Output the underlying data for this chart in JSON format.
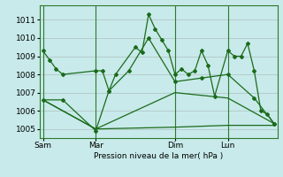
{
  "bg_color": "#c8eaea",
  "grid_color": "#aabbbb",
  "line_color": "#1a6b1a",
  "xlabel": "Pression niveau de la mer( hPa )",
  "ylim": [
    1004.5,
    1011.8
  ],
  "yticks": [
    1005,
    1006,
    1007,
    1008,
    1009,
    1010,
    1011
  ],
  "xtick_labels": [
    "Sam",
    "Mar",
    "Dim",
    "Lun"
  ],
  "xtick_positions": [
    0,
    8,
    20,
    28
  ],
  "series1_x": [
    0,
    1,
    2,
    3,
    8,
    9,
    10,
    11,
    14,
    15,
    16,
    17,
    18,
    19,
    20,
    21,
    22,
    23,
    24,
    25,
    26,
    28,
    29,
    30,
    31,
    32,
    33,
    34,
    35
  ],
  "series1_y": [
    1009.3,
    1008.8,
    1008.3,
    1008.0,
    1008.2,
    1008.2,
    1007.1,
    1008.0,
    1009.5,
    1009.2,
    1011.3,
    1010.5,
    1009.9,
    1009.3,
    1008.0,
    1008.3,
    1008.0,
    1008.2,
    1009.3,
    1008.5,
    1006.8,
    1009.3,
    1009.0,
    1009.0,
    1009.7,
    1008.2,
    1006.0,
    1005.8,
    1005.3
  ],
  "series2_x": [
    0,
    3,
    8,
    10,
    13,
    16,
    20,
    24,
    28,
    32,
    35
  ],
  "series2_y": [
    1006.6,
    1006.6,
    1004.9,
    1007.1,
    1008.2,
    1010.0,
    1007.6,
    1007.8,
    1008.0,
    1006.7,
    1005.3
  ],
  "series3_x": [
    0,
    8,
    20,
    28,
    35
  ],
  "series3_y": [
    1006.6,
    1005.0,
    1005.1,
    1005.2,
    1005.2
  ],
  "series4_x": [
    0,
    8,
    20,
    28,
    35
  ],
  "series4_y": [
    1006.6,
    1005.0,
    1007.0,
    1006.7,
    1005.3
  ]
}
